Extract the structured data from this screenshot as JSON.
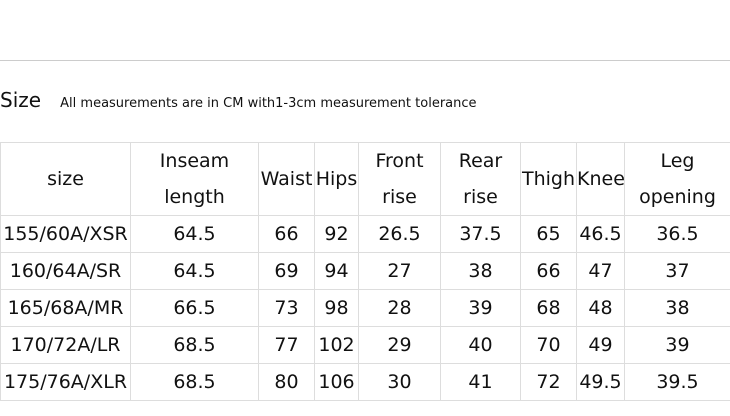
{
  "header": {
    "title": "Size",
    "subtitle": "All measurements are in CM with1-3cm measurement tolerance"
  },
  "table": {
    "columns": [
      "size",
      "Inseam length",
      "Waist",
      "Hips",
      "Front rise",
      "Rear rise",
      "Thigh",
      "Knee",
      "Leg opening"
    ],
    "rows": [
      [
        "155/60A/XSR",
        "64.5",
        "66",
        "92",
        "26.5",
        "37.5",
        "65",
        "46.5",
        "36.5"
      ],
      [
        "160/64A/SR",
        "64.5",
        "69",
        "94",
        "27",
        "38",
        "66",
        "47",
        "37"
      ],
      [
        "165/68A/MR",
        "66.5",
        "73",
        "98",
        "28",
        "39",
        "68",
        "48",
        "38"
      ],
      [
        "170/72A/LR",
        "68.5",
        "77",
        "102",
        "29",
        "40",
        "70",
        "49",
        "39"
      ],
      [
        "175/76A/XLR",
        "68.5",
        "80",
        "106",
        "30",
        "41",
        "72",
        "49.5",
        "39.5"
      ]
    ]
  }
}
